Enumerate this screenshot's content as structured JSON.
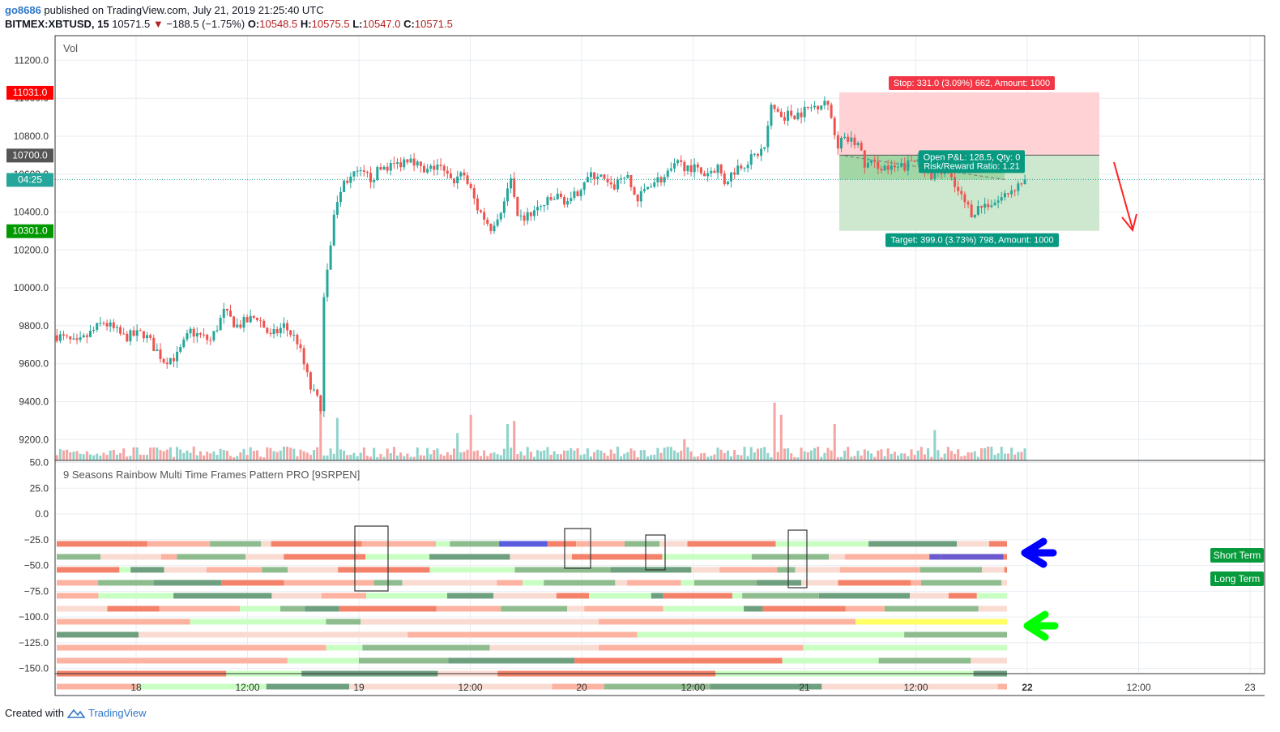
{
  "header": {
    "user": "go8686",
    "published": " published on TradingView.com, July 21, 2019 21:25:40 UTC",
    "symbol": "BITMEX:XBTUSD, 15",
    "last": "10571.5",
    "change": "−188.5 (−1.75%)",
    "o_label": "O:",
    "o_value": "10548.5",
    "h_label": "H:",
    "h_value": "10575.5",
    "l_label": "L:",
    "l_value": "10547.0",
    "c_label": "C:",
    "c_value": "10571.5"
  },
  "footer": {
    "created_with": "Created with",
    "brand": "TradingView"
  },
  "colors": {
    "up": "#26a69a",
    "down": "#ef5350",
    "stop": "#ff0000",
    "target": "#089981",
    "arrow_short": "#0000ff",
    "arrow_long": "#00ff00"
  },
  "chart_data": [
    {
      "type": "candlestick",
      "title": "",
      "pane_label": "Vol",
      "x_ticks": [
        "18",
        "12:00",
        "19",
        "12:00",
        "20",
        "12:00",
        "21",
        "12:00",
        "22",
        "12:00",
        "23"
      ],
      "y_ticks": [
        "11200.0",
        "11000.0",
        "10800.0",
        "10600.0",
        "10400.0",
        "10200.0",
        "10000.0",
        "9800.0",
        "9600.0",
        "9400.0",
        "9200.0"
      ],
      "ylim": [
        9090,
        11330
      ],
      "price_tags": {
        "stop": "11031.0",
        "entry": "10700.0",
        "countdown": "04:25",
        "target": "10301.0",
        "current": 10571.5
      },
      "close_path": [
        {
          "t": -6,
          "p": 9750
        },
        {
          "t": 0,
          "p": 9700
        },
        {
          "t": 8,
          "p": 9820
        },
        {
          "t": 14,
          "p": 9740
        },
        {
          "t": 20,
          "p": 9760
        },
        {
          "t": 26,
          "p": 9620
        },
        {
          "t": 30,
          "p": 9640
        },
        {
          "t": 34,
          "p": 9770
        },
        {
          "t": 40,
          "p": 9720
        },
        {
          "t": 44,
          "p": 9870
        },
        {
          "t": 48,
          "p": 9800
        },
        {
          "t": 54,
          "p": 9850
        },
        {
          "t": 58,
          "p": 9740
        },
        {
          "t": 62,
          "p": 9800
        },
        {
          "t": 66,
          "p": 9720
        },
        {
          "t": 70,
          "p": 9470
        },
        {
          "t": 73,
          "p": 9380
        },
        {
          "t": 74,
          "p": 9980
        },
        {
          "t": 77,
          "p": 10380
        },
        {
          "t": 80,
          "p": 10560
        },
        {
          "t": 84,
          "p": 10600
        },
        {
          "t": 88,
          "p": 10580
        },
        {
          "t": 92,
          "p": 10640
        },
        {
          "t": 96,
          "p": 10650
        },
        {
          "t": 100,
          "p": 10700
        },
        {
          "t": 104,
          "p": 10600
        },
        {
          "t": 108,
          "p": 10650
        },
        {
          "t": 112,
          "p": 10560
        },
        {
          "t": 116,
          "p": 10600
        },
        {
          "t": 120,
          "p": 10420
        },
        {
          "t": 124,
          "p": 10320
        },
        {
          "t": 128,
          "p": 10450
        },
        {
          "t": 130,
          "p": 10600
        },
        {
          "t": 132,
          "p": 10350
        },
        {
          "t": 136,
          "p": 10390
        },
        {
          "t": 140,
          "p": 10440
        },
        {
          "t": 144,
          "p": 10480
        },
        {
          "t": 148,
          "p": 10450
        },
        {
          "t": 152,
          "p": 10570
        },
        {
          "t": 156,
          "p": 10600
        },
        {
          "t": 160,
          "p": 10520
        },
        {
          "t": 164,
          "p": 10600
        },
        {
          "t": 168,
          "p": 10460
        },
        {
          "t": 172,
          "p": 10560
        },
        {
          "t": 176,
          "p": 10580
        },
        {
          "t": 180,
          "p": 10650
        },
        {
          "t": 184,
          "p": 10640
        },
        {
          "t": 188,
          "p": 10600
        },
        {
          "t": 192,
          "p": 10640
        },
        {
          "t": 194,
          "p": 10560
        },
        {
          "t": 198,
          "p": 10640
        },
        {
          "t": 202,
          "p": 10680
        },
        {
          "t": 206,
          "p": 10740
        },
        {
          "t": 208,
          "p": 10950
        },
        {
          "t": 212,
          "p": 10910
        },
        {
          "t": 216,
          "p": 10920
        },
        {
          "t": 220,
          "p": 10950
        },
        {
          "t": 224,
          "p": 10990
        },
        {
          "t": 226,
          "p": 10900
        },
        {
          "t": 228,
          "p": 10760
        },
        {
          "t": 231,
          "p": 10780
        },
        {
          "t": 234,
          "p": 10760
        },
        {
          "t": 236,
          "p": 10650
        },
        {
          "t": 240,
          "p": 10650
        },
        {
          "t": 244,
          "p": 10620
        },
        {
          "t": 248,
          "p": 10640
        },
        {
          "t": 252,
          "p": 10680
        },
        {
          "t": 256,
          "p": 10580
        },
        {
          "t": 260,
          "p": 10620
        },
        {
          "t": 264,
          "p": 10500
        },
        {
          "t": 268,
          "p": 10400
        },
        {
          "t": 272,
          "p": 10440
        },
        {
          "t": 276,
          "p": 10460
        },
        {
          "t": 280,
          "p": 10520
        },
        {
          "t": 284,
          "p": 10571.5
        }
      ],
      "volume_spikes": [
        {
          "t": 73,
          "v": 0.85
        },
        {
          "t": 78,
          "v": 0.7
        },
        {
          "t": 114,
          "v": 0.45
        },
        {
          "t": 118,
          "v": 0.75
        },
        {
          "t": 129,
          "v": 0.6
        },
        {
          "t": 131,
          "v": 0.65
        },
        {
          "t": 182,
          "v": 0.35
        },
        {
          "t": 209,
          "v": 0.95
        },
        {
          "t": 211,
          "v": 0.75
        },
        {
          "t": 227,
          "v": 0.6
        },
        {
          "t": 257,
          "v": 0.5
        }
      ],
      "position": {
        "stop_label": "Stop: 331.0 (3.09%) 662, Amount: 1000",
        "target_label": "Target: 399.0 (3.73%) 798, Amount: 1000",
        "pnl_label": "Open P&L: 128.5, Qty: 0",
        "rr_label": "Risk/Reward Ratio: 1.21",
        "entry": 10700.0,
        "stop": 11031.0,
        "target": 10301.0
      }
    },
    {
      "type": "heatmap",
      "title": "9 Seasons Rainbow Multi Time Frames Pattern PRO [9SRPEN]",
      "y_ticks": [
        "50.0",
        "25.0",
        "0.0",
        "−25.0",
        "−50.0",
        "−75.0",
        "−100.0",
        "−125.0",
        "−150.0"
      ],
      "ylim": [
        -155,
        52
      ],
      "legend": [
        "Short Term",
        "Long Term"
      ]
    }
  ]
}
